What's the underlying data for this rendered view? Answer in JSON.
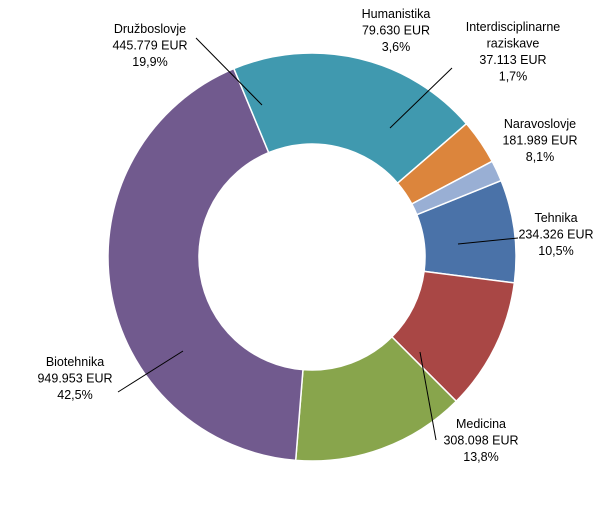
{
  "chart_data": {
    "type": "pie",
    "variant": "donut",
    "title": "",
    "unit": "EUR",
    "legend": "none (data labels)",
    "slices": [
      {
        "label": "Naravoslovje",
        "value_text": "181.989 EUR",
        "value": 181989,
        "percent_text": "8,1%",
        "percent": 8.1,
        "color": "#4a72a8"
      },
      {
        "label": "Tehnika",
        "value_text": "234.326 EUR",
        "value": 234326,
        "percent_text": "10,5%",
        "percent": 10.5,
        "color": "#a94745"
      },
      {
        "label": "Medicina",
        "value_text": "308.098 EUR",
        "value": 308098,
        "percent_text": "13,8%",
        "percent": 13.8,
        "color": "#88a54c"
      },
      {
        "label": "Biotehnika",
        "value_text": "949.953 EUR",
        "value": 949953,
        "percent_text": "42,5%",
        "percent": 42.5,
        "color": "#715a8e"
      },
      {
        "label": "Družboslovje",
        "value_text": "445.779 EUR",
        "value": 445779,
        "percent_text": "19,9%",
        "percent": 19.9,
        "color": "#4099af"
      },
      {
        "label": "Humanistika",
        "value_text": "79.630 EUR",
        "value": 79630,
        "percent_text": "3,6%",
        "percent": 3.6,
        "color": "#dc853c"
      },
      {
        "label": "Interdisciplinarne raziskave",
        "label_lines": [
          "Interdisciplinarne",
          "raziskave"
        ],
        "value_text": "37.113 EUR",
        "value": 37113,
        "percent_text": "1,7%",
        "percent": 1.7,
        "color": "#99afd4"
      }
    ]
  }
}
